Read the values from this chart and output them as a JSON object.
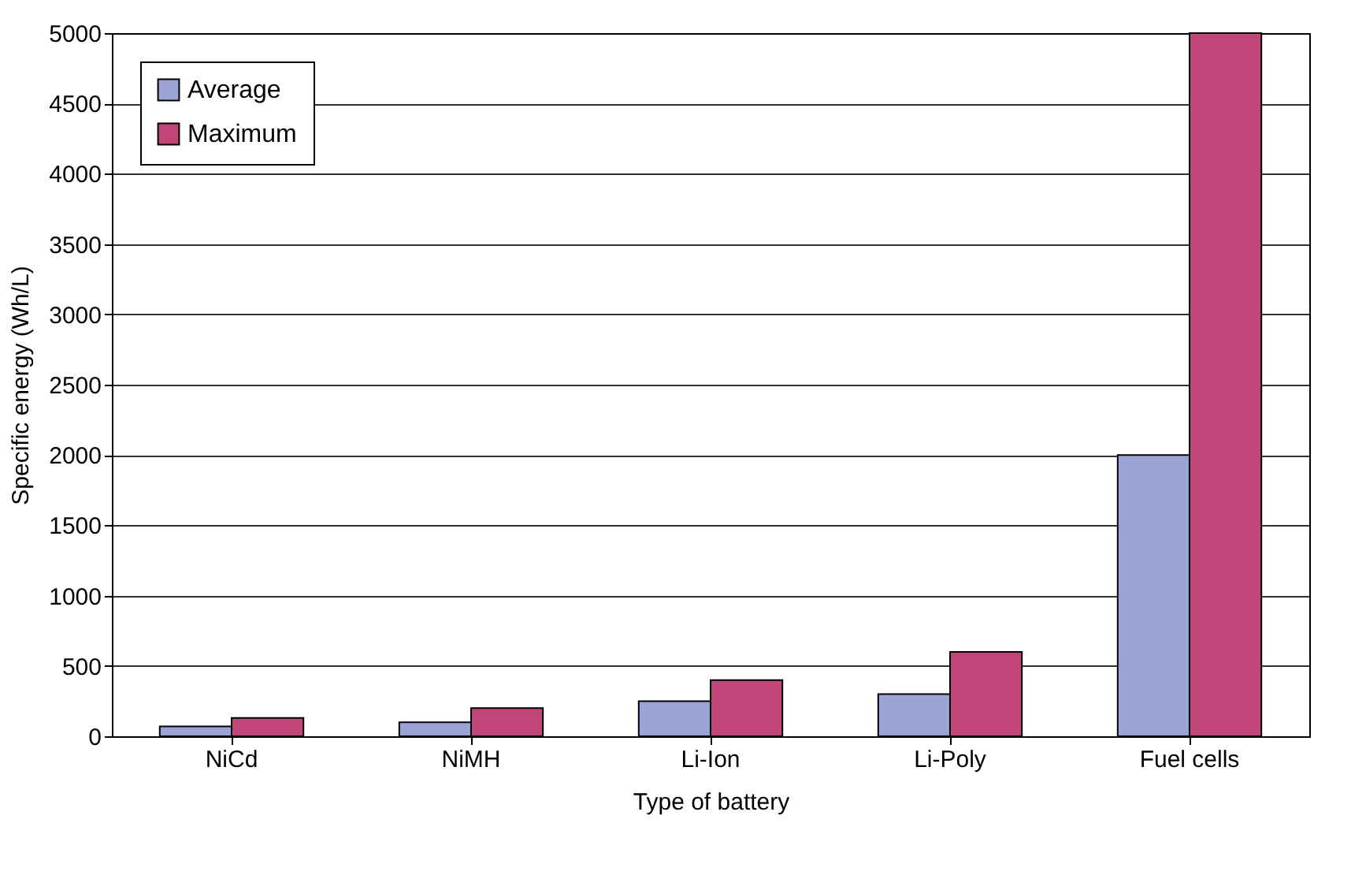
{
  "chart_data": {
    "type": "bar",
    "xlabel": "Type of battery",
    "ylabel": "Specific energy (Wh/L)",
    "categories": [
      "NiCd",
      "NiMH",
      "Li-Ion",
      "Li-Poly",
      "Fuel cells"
    ],
    "series": [
      {
        "name": "Average",
        "color": "#9aa3d6",
        "values": [
          70,
          100,
          250,
          300,
          2000
        ]
      },
      {
        "name": "Maximum",
        "color": "#bf4677",
        "values": [
          130,
          200,
          400,
          600,
          5000
        ]
      }
    ],
    "ylim": [
      0,
      5000
    ],
    "yticks": [
      0,
      500,
      1000,
      1500,
      2000,
      2500,
      3000,
      3500,
      4000,
      4500,
      5000
    ],
    "grid": "y",
    "legend": "top left"
  }
}
